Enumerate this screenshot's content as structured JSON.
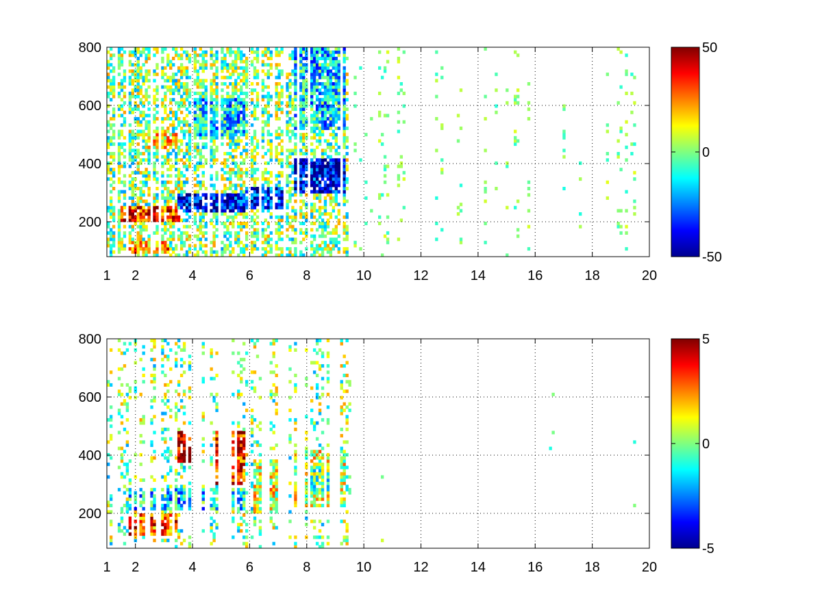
{
  "figure": {
    "background": "#ffffff",
    "colormap": "jet"
  },
  "chart_data": [
    {
      "type": "heatmap",
      "title": "",
      "xlabel": "",
      "ylabel": "",
      "xlim": [
        1,
        20
      ],
      "ylim": [
        80,
        800
      ],
      "grid": true,
      "xticks": [
        1,
        2,
        4,
        6,
        8,
        10,
        12,
        14,
        16,
        18,
        20
      ],
      "xtick_labels": [
        "1",
        "2",
        "4",
        "6",
        "8",
        "10",
        "12",
        "14",
        "16",
        "18",
        "20"
      ],
      "yticks": [
        200,
        400,
        600,
        800
      ],
      "ytick_labels": [
        "200",
        "400",
        "600",
        "800"
      ],
      "colorbar": {
        "range": [
          -50,
          50
        ],
        "ticks": [
          -50,
          0,
          50
        ],
        "tick_labels": [
          "-50",
          "0",
          "50"
        ],
        "placement": "right"
      },
      "features": [
        {
          "x": [
            1.5,
            3.6
          ],
          "y": [
            205,
            250
          ],
          "value": 35,
          "desc": "positive band"
        },
        {
          "x": [
            1.8,
            3.2
          ],
          "y": [
            95,
            135
          ],
          "value": 25,
          "desc": "positive band"
        },
        {
          "x": [
            3.5,
            5.8
          ],
          "y": [
            230,
            300
          ],
          "value": -40,
          "desc": "negative band"
        },
        {
          "x": [
            2.4,
            3.5
          ],
          "y": [
            450,
            500
          ],
          "value": 15,
          "desc": "positive patch"
        },
        {
          "x": [
            5.8,
            7.2
          ],
          "y": [
            240,
            320
          ],
          "value": -35,
          "desc": "negative band"
        },
        {
          "x": [
            7.6,
            9.4
          ],
          "y": [
            300,
            420
          ],
          "value": -40,
          "desc": "negative band"
        },
        {
          "x": [
            7.6,
            9.4
          ],
          "y": [
            520,
            800
          ],
          "value": -15,
          "desc": "weak negative"
        },
        {
          "x": [
            4.0,
            5.8
          ],
          "y": [
            500,
            620
          ],
          "value": -15,
          "desc": "weak negative"
        }
      ]
    },
    {
      "type": "heatmap",
      "title": "",
      "xlabel": "",
      "ylabel": "",
      "xlim": [
        1,
        20
      ],
      "ylim": [
        80,
        800
      ],
      "grid": true,
      "xticks": [
        1,
        2,
        4,
        6,
        8,
        10,
        12,
        14,
        16,
        18,
        20
      ],
      "xtick_labels": [
        "1",
        "2",
        "4",
        "6",
        "8",
        "10",
        "12",
        "14",
        "16",
        "18",
        "20"
      ],
      "yticks": [
        200,
        400,
        600,
        800
      ],
      "ytick_labels": [
        "200",
        "400",
        "600",
        "800"
      ],
      "colorbar": {
        "range": [
          -5,
          5
        ],
        "ticks": [
          -5,
          0,
          5
        ],
        "tick_labels": [
          "-5",
          "0",
          "5"
        ],
        "placement": "right"
      },
      "features": [
        {
          "x": [
            1.8,
            5.8
          ],
          "y": [
            215,
            290
          ],
          "value": -1.5,
          "desc": "negative band"
        },
        {
          "x": [
            1.8,
            3.5
          ],
          "y": [
            120,
            200
          ],
          "value": 3,
          "desc": "positive band"
        },
        {
          "x": [
            3.5,
            4.2
          ],
          "y": [
            380,
            480
          ],
          "value": 4.5,
          "desc": "positive patch"
        },
        {
          "x": [
            4.8,
            5.8
          ],
          "y": [
            300,
            480
          ],
          "value": 3.5,
          "desc": "positive patch"
        },
        {
          "x": [
            6.1,
            7.2
          ],
          "y": [
            200,
            380
          ],
          "value": 1,
          "desc": "weak positive"
        },
        {
          "x": [
            7.6,
            9.4
          ],
          "y": [
            220,
            420
          ],
          "value": 0.8,
          "desc": "weak positive"
        },
        {
          "x": [
            8.0,
            9.2
          ],
          "y": [
            280,
            360
          ],
          "value": -1.5,
          "desc": "negative patch"
        }
      ]
    }
  ]
}
